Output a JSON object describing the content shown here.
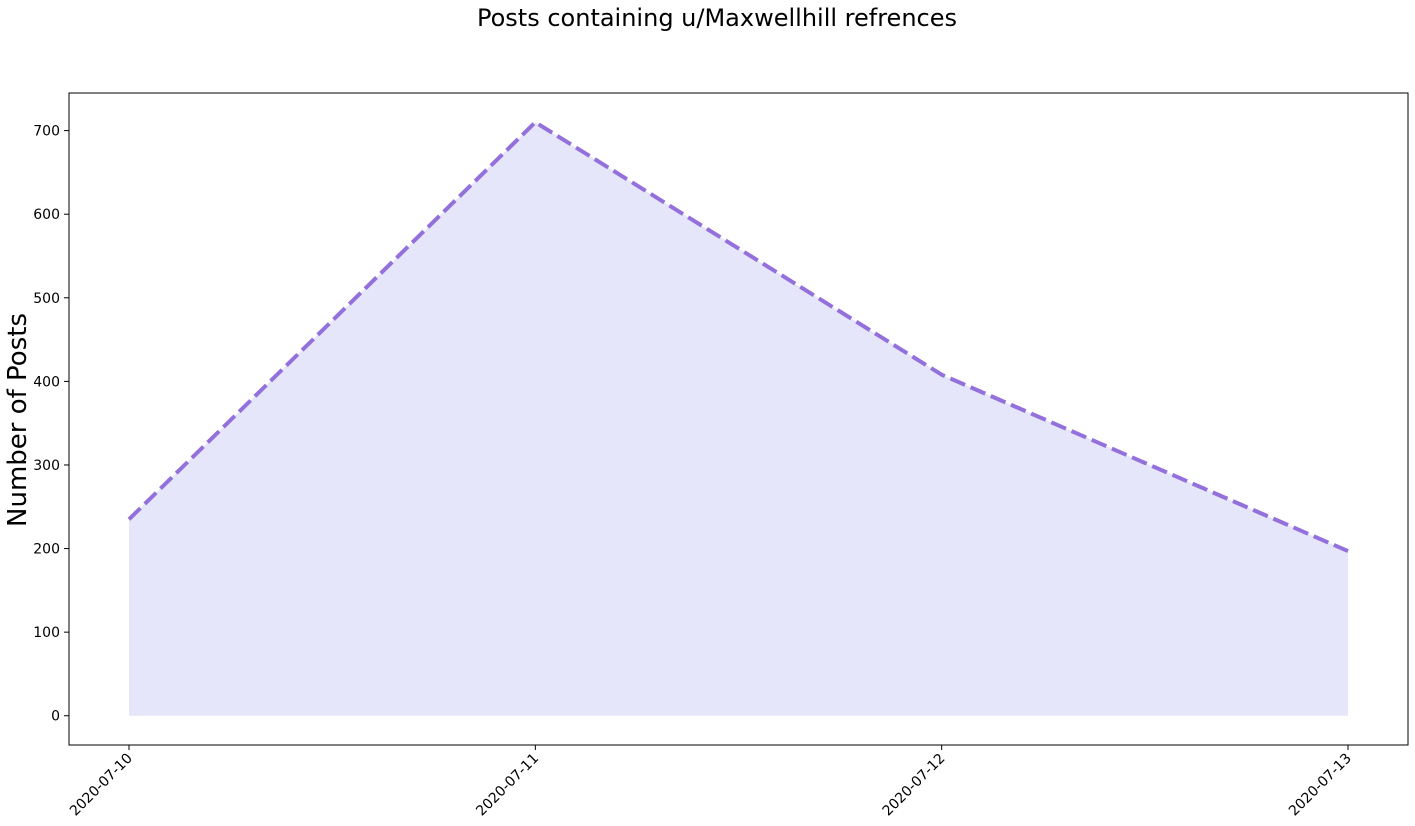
{
  "chart_data": {
    "type": "area",
    "title": "Posts containing u/Maxwellhill refrences",
    "xlabel": "",
    "ylabel": "Number of Posts",
    "x": [
      "2020-07-10",
      "2020-07-11",
      "2020-07-12",
      "2020-07-13"
    ],
    "series": [
      {
        "values": [
          235,
          710,
          408,
          197
        ]
      }
    ],
    "yticks": [
      0,
      100,
      200,
      300,
      400,
      500,
      600,
      700
    ],
    "ylim": [
      -35,
      745
    ],
    "line_style": "dashed",
    "line_color": "#9370DB",
    "fill_color": "#E6E6FA",
    "grid": false,
    "legend": "none"
  }
}
